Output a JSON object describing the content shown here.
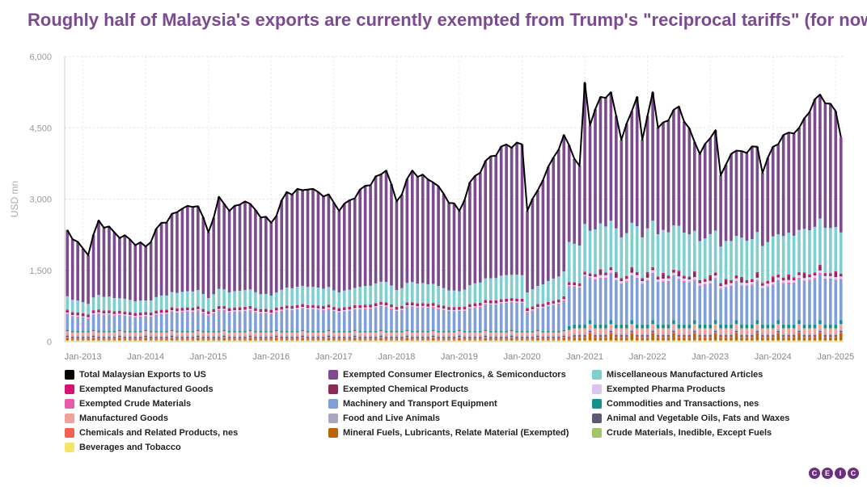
{
  "title": "Roughly half of Malaysia's exports are currently exempted from Trump's \"reciprocal tariffs\" (for now)",
  "logo_letters": [
    "C",
    "E",
    "I",
    "C"
  ],
  "chart_data": {
    "type": "bar",
    "stacked": true,
    "ylabel": "USD mn",
    "ylim": [
      0,
      6000
    ],
    "yticks": [
      "0",
      "1,500",
      "3,000",
      "4,500",
      "6,000"
    ],
    "xticks": [
      "Jan-2013",
      "Jan-2014",
      "Jan-2015",
      "Jan-2016",
      "Jan-2017",
      "Jan-2018",
      "Jan-2019",
      "Jan-2020",
      "Jan-2021",
      "Jan-2022",
      "Jan-2023",
      "Jan-2024",
      "Jan-2025"
    ],
    "grid": true,
    "legend_position": "bottom",
    "period": "monthly, Oct-2012 to Feb-2025",
    "total_series": {
      "name": "Total Malaysian Exports to US",
      "color": "#000000",
      "anchors": [
        [
          "Oct-2012",
          2350
        ],
        [
          "Dec-2012",
          2100
        ],
        [
          "Feb-2013",
          1820
        ],
        [
          "Mar-2013",
          2250
        ],
        [
          "Apr-2013",
          2550
        ],
        [
          "Jul-2013",
          2300
        ],
        [
          "Jan-2014",
          2000
        ],
        [
          "Apr-2014",
          2500
        ],
        [
          "Aug-2014",
          2800
        ],
        [
          "Nov-2014",
          2850
        ],
        [
          "Jan-2015",
          2300
        ],
        [
          "Mar-2015",
          3050
        ],
        [
          "May-2015",
          2750
        ],
        [
          "Aug-2015",
          2950
        ],
        [
          "Jan-2016",
          2500
        ],
        [
          "Apr-2016",
          3150
        ],
        [
          "Aug-2016",
          3200
        ],
        [
          "Dec-2016",
          3100
        ],
        [
          "Feb-2017",
          2750
        ],
        [
          "Jun-2017",
          3200
        ],
        [
          "Nov-2017",
          3600
        ],
        [
          "Jan-2018",
          2950
        ],
        [
          "Apr-2018",
          3600
        ],
        [
          "Aug-2018",
          3350
        ],
        [
          "Jan-2019",
          2750
        ],
        [
          "Mar-2019",
          3350
        ],
        [
          "Jul-2019",
          3900
        ],
        [
          "Oct-2019",
          4150
        ],
        [
          "Jan-2020",
          4150
        ],
        [
          "Feb-2020",
          2750
        ],
        [
          "May-2020",
          3400
        ],
        [
          "Sep-2020",
          4350
        ],
        [
          "Dec-2020",
          3700
        ],
        [
          "Jan-2021",
          5450
        ],
        [
          "Feb-2021",
          4550
        ],
        [
          "Apr-2021",
          5150
        ],
        [
          "Jun-2021",
          5250
        ],
        [
          "Aug-2021",
          4250
        ],
        [
          "Nov-2021",
          5150
        ],
        [
          "Dec-2021",
          4250
        ],
        [
          "Feb-2022",
          5250
        ],
        [
          "Mar-2022",
          4500
        ],
        [
          "Jul-2022",
          4950
        ],
        [
          "Nov-2022",
          3950
        ],
        [
          "Feb-2023",
          4450
        ],
        [
          "Mar-2023",
          3500
        ],
        [
          "May-2023",
          3950
        ],
        [
          "Oct-2023",
          4100
        ],
        [
          "Nov-2023",
          3550
        ],
        [
          "Jan-2024",
          4100
        ],
        [
          "Mar-2024",
          4350
        ],
        [
          "Jun-2024",
          4500
        ],
        [
          "Sep-2024",
          5100
        ],
        [
          "Oct-2024",
          5200
        ],
        [
          "Jan-2025",
          4850
        ],
        [
          "Feb-2025",
          4300
        ]
      ]
    },
    "series": [
      {
        "name": "Total Malaysian Exports to US",
        "color": "#000000"
      },
      {
        "name": "Exempted Consumer Electronics, & Semiconductors",
        "color": "#7b4a8f"
      },
      {
        "name": "Miscellaneous Manufactured Articles",
        "color": "#7fcfcf"
      },
      {
        "name": "Exempted Manufactured Goods",
        "color": "#d4146e"
      },
      {
        "name": "Exempted Chemical Products",
        "color": "#8a2a55"
      },
      {
        "name": "Exempted Pharma Products",
        "color": "#d9c5f0"
      },
      {
        "name": "Exempted Crude Materials",
        "color": "#e85ba8"
      },
      {
        "name": "Machinery and Transport Equipment",
        "color": "#7f9fd9"
      },
      {
        "name": "Commodities and Transactions, nes",
        "color": "#11938b"
      },
      {
        "name": "Manufactured Goods",
        "color": "#f4a09a"
      },
      {
        "name": "Food and Live Animals",
        "color": "#a9a6c1"
      },
      {
        "name": "Animal and Vegetable Oils, Fats and Waxes",
        "color": "#5e5873"
      },
      {
        "name": "Chemicals and Related Products, nes",
        "color": "#f26052"
      },
      {
        "name": "Mineral Fuels, Lubricants, Relate Material (Exempted)",
        "color": "#b8650b"
      },
      {
        "name": "Crude Materials, Inedible, Except Fuels",
        "color": "#a2c46b"
      },
      {
        "name": "Beverages and Tobacco",
        "color": "#f5e46a"
      }
    ]
  }
}
